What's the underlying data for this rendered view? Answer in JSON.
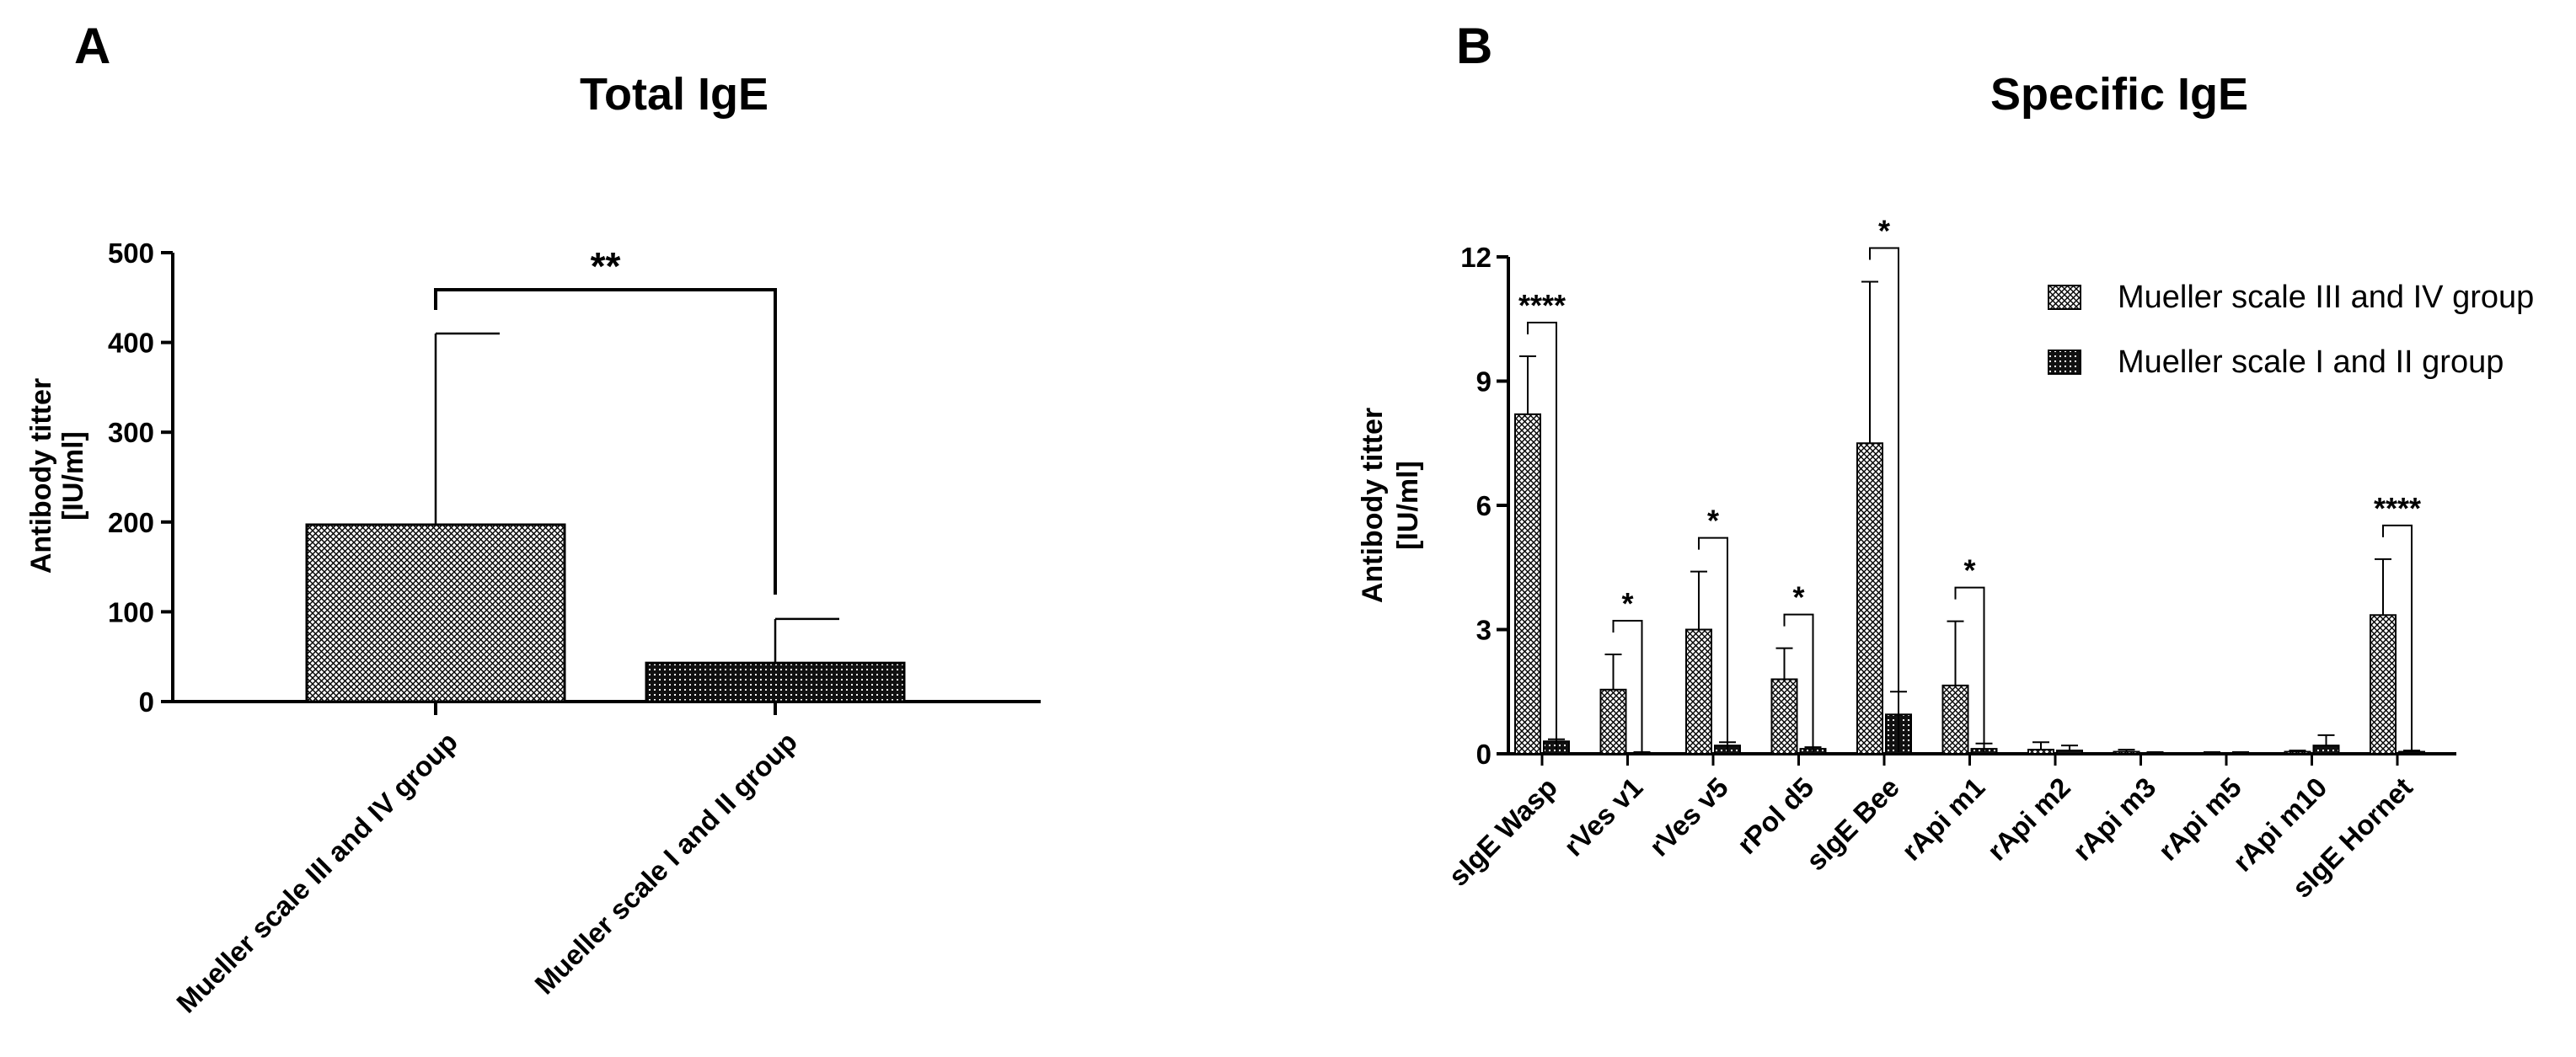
{
  "panels": [
    {
      "letter": "A"
    },
    {
      "letter": "B"
    }
  ],
  "chart_data": [
    {
      "type": "bar",
      "title": "Total IgE",
      "ylabel": "Antibody titter\n[IU/ml]",
      "xlabel": "",
      "ylim": [
        0,
        500
      ],
      "yticks": [
        0,
        100,
        200,
        300,
        400,
        500
      ],
      "categories": [
        "Mueller scale III and IV group",
        "Mueller scale I and II group"
      ],
      "values": [
        197,
        43
      ],
      "error_upper": [
        410,
        92
      ],
      "fills": [
        "crosshatch",
        "dots"
      ],
      "significance": [
        {
          "between": [
            0,
            1
          ],
          "label": "**"
        }
      ]
    },
    {
      "type": "bar",
      "title": "Specific IgE",
      "ylabel": "Antibody titter\n[IU/ml]",
      "xlabel": "",
      "ylim": [
        0,
        12
      ],
      "yticks": [
        0,
        3,
        6,
        9,
        12
      ],
      "categories": [
        "sIgE Wasp",
        "rVes v1",
        "rVes v5",
        "rPol d5",
        "sIgE Bee",
        "rApi m1",
        "rApi m2",
        "rApi m3",
        "rApi m5",
        "rApi m10",
        "sIgE Hornet"
      ],
      "series": [
        {
          "name": "Mueller scale III and IV group",
          "fill": "crosshatch",
          "values": [
            8.2,
            1.55,
            3.0,
            1.8,
            7.5,
            1.65,
            0.1,
            0.05,
            0.02,
            0.05,
            3.35
          ],
          "error_upper": [
            9.6,
            2.4,
            4.4,
            2.55,
            11.4,
            3.2,
            0.28,
            0.1,
            0.04,
            0.08,
            4.7
          ]
        },
        {
          "name": "Mueller scale I and II group",
          "fill": "dots",
          "values": [
            0.3,
            0.02,
            0.2,
            0.12,
            0.95,
            0.12,
            0.08,
            0.02,
            0.02,
            0.2,
            0.05
          ],
          "error_upper": [
            0.35,
            0.04,
            0.28,
            0.16,
            1.5,
            0.25,
            0.2,
            0.04,
            0.04,
            0.45,
            0.08
          ]
        }
      ],
      "significance": [
        {
          "category": 0,
          "label": "****"
        },
        {
          "category": 1,
          "label": "*"
        },
        {
          "category": 2,
          "label": "*"
        },
        {
          "category": 3,
          "label": "*"
        },
        {
          "category": 4,
          "label": "*"
        },
        {
          "category": 5,
          "label": "*"
        },
        {
          "category": 10,
          "label": "****"
        }
      ],
      "legend": {
        "placement": "top-right"
      }
    }
  ]
}
